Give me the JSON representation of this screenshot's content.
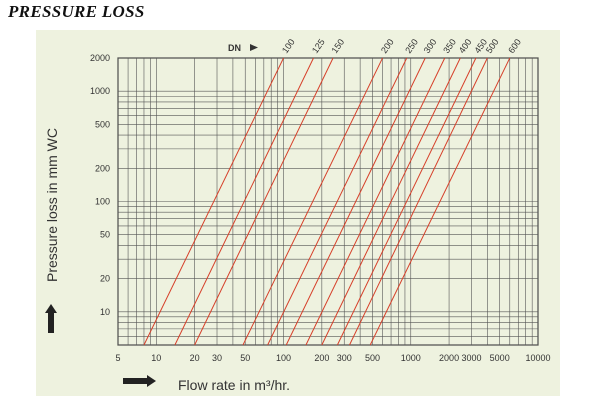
{
  "title": "PRESSURE LOSS",
  "chart_data": {
    "type": "line",
    "title": "",
    "xlabel": "Flow rate in m³/hr.",
    "ylabel": "Pressure loss in mm WC",
    "x_scale": "log",
    "y_scale": "log",
    "xlim": [
      5,
      10000
    ],
    "ylim": [
      5,
      2000
    ],
    "grid": true,
    "x_ticks": [
      5,
      10,
      20,
      30,
      50,
      100,
      200,
      300,
      500,
      1000,
      2000,
      3000,
      5000,
      10000
    ],
    "y_ticks": [
      10,
      20,
      50,
      100,
      200,
      500,
      1000,
      2000
    ],
    "legend_title": "DN",
    "series": [
      {
        "name": "100",
        "points": [
          [
            8,
            5
          ],
          [
            100,
            2000
          ]
        ]
      },
      {
        "name": "125",
        "points": [
          [
            14,
            5
          ],
          [
            172,
            2000
          ]
        ]
      },
      {
        "name": "150",
        "points": [
          [
            20,
            5
          ],
          [
            245,
            2000
          ]
        ]
      },
      {
        "name": "200",
        "points": [
          [
            48,
            5
          ],
          [
            600,
            2000
          ]
        ]
      },
      {
        "name": "250",
        "points": [
          [
            75,
            5
          ],
          [
            930,
            2000
          ]
        ]
      },
      {
        "name": "300",
        "points": [
          [
            105,
            5
          ],
          [
            1300,
            2000
          ]
        ]
      },
      {
        "name": "350",
        "points": [
          [
            150,
            5
          ],
          [
            1850,
            2000
          ]
        ]
      },
      {
        "name": "400",
        "points": [
          [
            200,
            5
          ],
          [
            2450,
            2000
          ]
        ]
      },
      {
        "name": "450",
        "points": [
          [
            265,
            5
          ],
          [
            3250,
            2000
          ]
        ]
      },
      {
        "name": "500",
        "points": [
          [
            330,
            5
          ],
          [
            4000,
            2000
          ]
        ]
      },
      {
        "name": "600",
        "points": [
          [
            480,
            5
          ],
          [
            6000,
            2000
          ]
        ]
      }
    ]
  }
}
